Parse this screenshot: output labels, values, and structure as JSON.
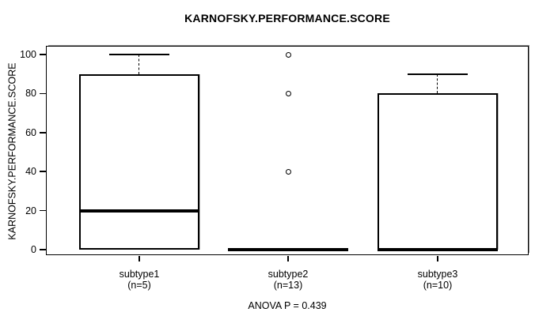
{
  "chart_data": {
    "type": "box",
    "title": "KARNOFSKY.PERFORMANCE.SCORE",
    "ylabel": "KARNOFSKY.PERFORMANCE.SCORE",
    "xlabel": "",
    "yticks": [
      0,
      20,
      40,
      60,
      80,
      100
    ],
    "ylim": [
      -3,
      104
    ],
    "grid": false,
    "legend": "none",
    "annotation": "ANOVA P = 0.439",
    "groups": [
      {
        "label": "subtype1",
        "sublabel": "(n=5)",
        "n": 5,
        "q1": 0,
        "median": 20,
        "q3": 90,
        "whisker_low": 0,
        "whisker_high": 100,
        "outliers": []
      },
      {
        "label": "subtype2",
        "sublabel": "(n=13)",
        "n": 13,
        "q1": 0,
        "median": 0,
        "q3": 0,
        "whisker_low": 0,
        "whisker_high": 0,
        "outliers": [
          100,
          80,
          40
        ]
      },
      {
        "label": "subtype3",
        "sublabel": "(n=10)",
        "n": 10,
        "q1": 0,
        "median": 0,
        "q3": 80,
        "whisker_low": 0,
        "whisker_high": 90,
        "outliers": []
      }
    ],
    "colors": {
      "line": "#000000",
      "background": "#ffffff",
      "frame_shadow": "#8c8c8c"
    }
  }
}
